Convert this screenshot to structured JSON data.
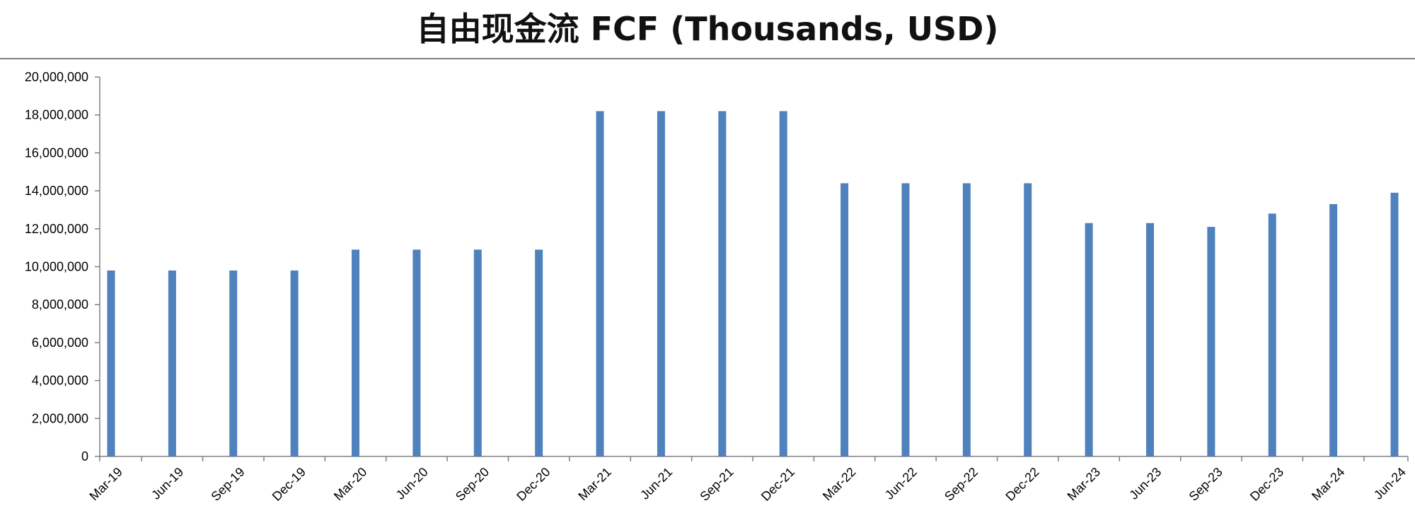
{
  "chart_data": {
    "type": "bar",
    "title": "自由现金流 FCF (Thousands, USD)",
    "xlabel": "",
    "ylabel": "",
    "categories": [
      "Mar-19",
      "Jun-19",
      "Sep-19",
      "Dec-19",
      "Mar-20",
      "Jun-20",
      "Sep-20",
      "Dec-20",
      "Mar-21",
      "Jun-21",
      "Sep-21",
      "Dec-21",
      "Mar-22",
      "Jun-22",
      "Sep-22",
      "Dec-22",
      "Mar-23",
      "Jun-23",
      "Sep-23",
      "Dec-23",
      "Mar-24",
      "Jun-24"
    ],
    "values": [
      9800000,
      9800000,
      9800000,
      9800000,
      10900000,
      10900000,
      10900000,
      10900000,
      18200000,
      18200000,
      18200000,
      18200000,
      14400000,
      14400000,
      14400000,
      14400000,
      12300000,
      12300000,
      12100000,
      12800000,
      13300000,
      13900000
    ],
    "ylim": [
      0,
      20000000
    ],
    "yticks": [
      "0",
      "2,000,000",
      "4,000,000",
      "6,000,000",
      "8,000,000",
      "10,000,000",
      "12,000,000",
      "14,000,000",
      "16,000,000",
      "18,000,000",
      "20,000,000"
    ],
    "grid": false,
    "legend": "none",
    "bar_color": "#4F81BD"
  }
}
